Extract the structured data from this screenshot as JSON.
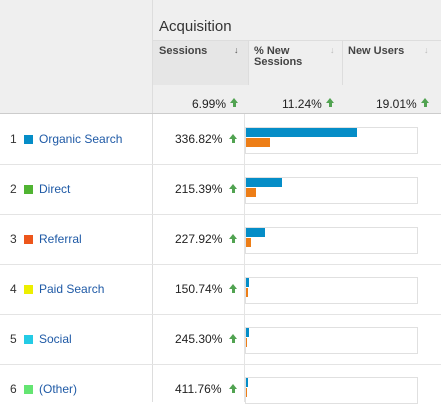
{
  "header": {
    "group_title": "Acquisition",
    "columns": [
      {
        "label": "Sessions",
        "sorted": true
      },
      {
        "label": "% New Sessions",
        "sorted": false
      },
      {
        "label": "New Users",
        "sorted": false
      }
    ]
  },
  "totals": {
    "sessions": "6.99%",
    "pct_new_sessions": "11.24%",
    "new_users": "19.01%"
  },
  "rows": [
    {
      "num": "1",
      "label": "Organic Search",
      "color": "#058dc7",
      "value": "336.82%",
      "sessions_share": 0.64,
      "newusers_share": 0.14
    },
    {
      "num": "2",
      "label": "Direct",
      "color": "#50b432",
      "value": "215.39%",
      "sessions_share": 0.21,
      "newusers_share": 0.06
    },
    {
      "num": "3",
      "label": "Referral",
      "color": "#ed561b",
      "value": "227.92%",
      "sessions_share": 0.11,
      "newusers_share": 0.03
    },
    {
      "num": "4",
      "label": "Paid Search",
      "color": "#edef00",
      "value": "150.74%",
      "sessions_share": 0.02,
      "newusers_share": 0.01
    },
    {
      "num": "5",
      "label": "Social",
      "color": "#24cbe5",
      "value": "245.30%",
      "sessions_share": 0.015,
      "newusers_share": 0.008
    },
    {
      "num": "6",
      "label": "(Other)",
      "color": "#64e572",
      "value": "411.76%",
      "sessions_share": 0.01,
      "newusers_share": 0.006
    }
  ],
  "colors": {
    "sessions_bar": "#058dc7",
    "new_users_bar": "#ed7e17",
    "trend_up": "#51a351"
  }
}
